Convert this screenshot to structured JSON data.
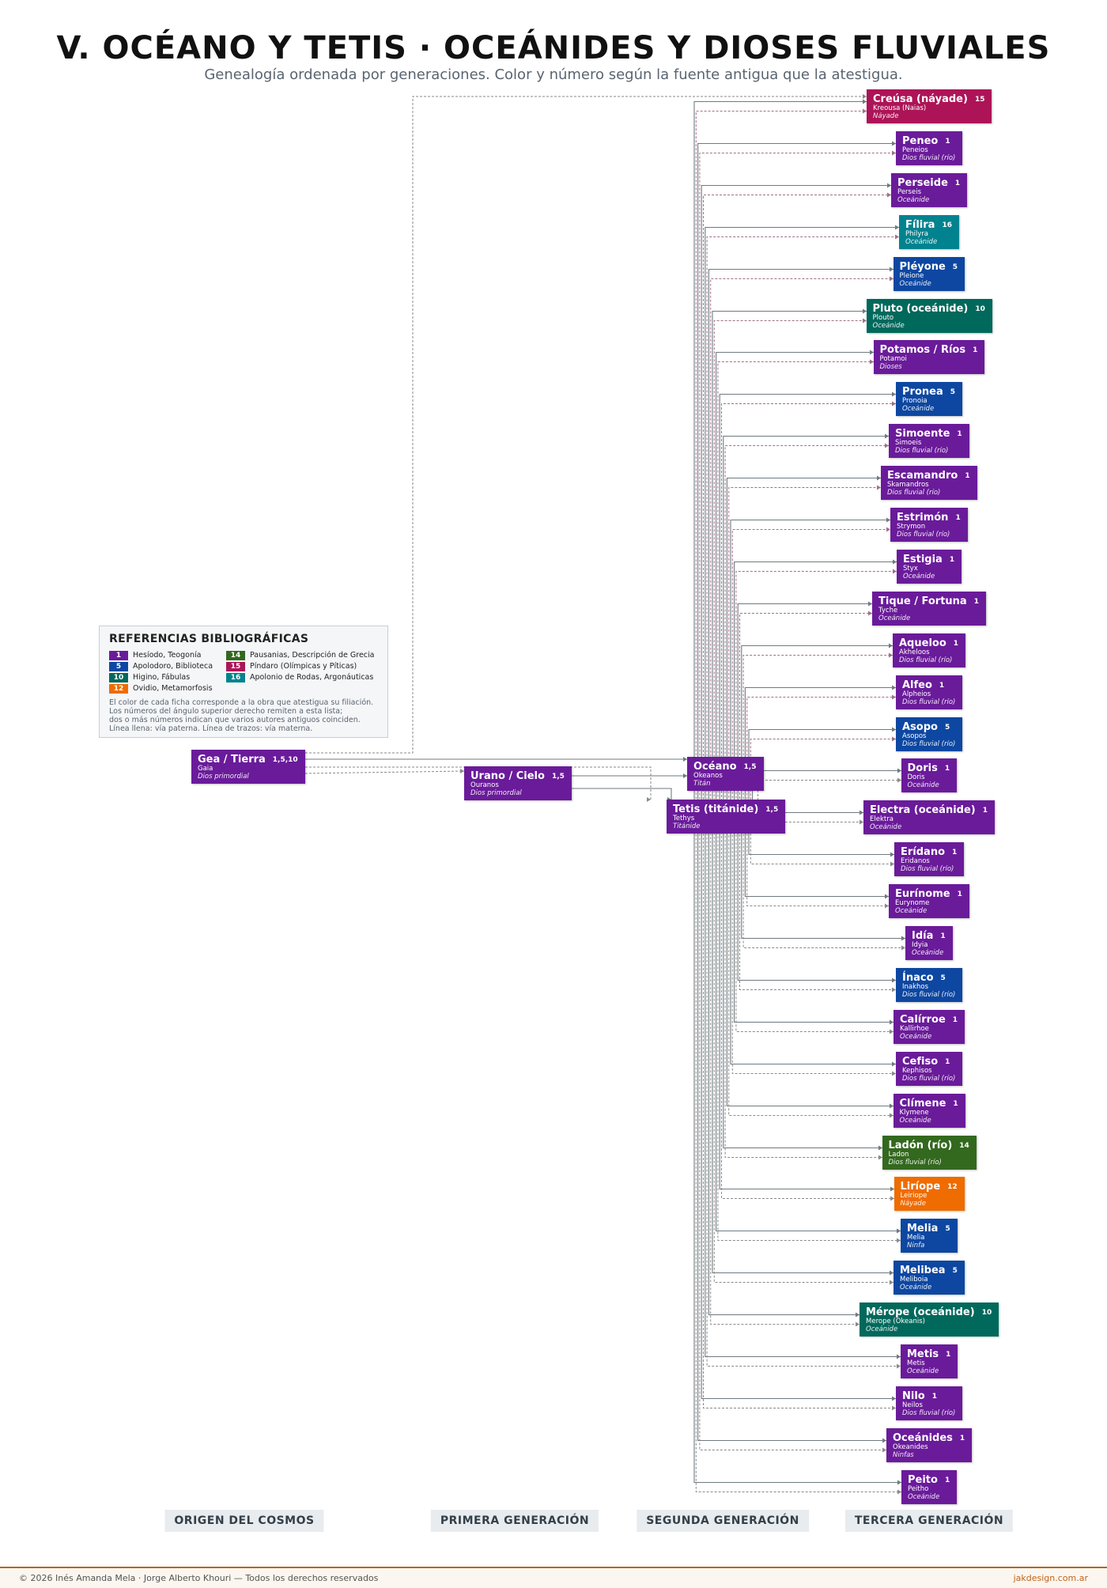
{
  "header": {
    "title": "V. OCÉANO Y TETIS · OCEÁNIDES Y DIOSES FLUVIALES",
    "subtitle": "Genealogía ordenada por generaciones. Color y número según la fuente antigua que la atestigua."
  },
  "legend": {
    "title": "REFERENCIAS BIBLIOGRÁFICAS",
    "items": [
      {
        "num": 1,
        "label": "Hesíodo, Teogonía",
        "color": "#6a1b9a"
      },
      {
        "num": 5,
        "label": "Apolodoro, Biblioteca",
        "color": "#0d47a1"
      },
      {
        "num": 10,
        "label": "Higino, Fábulas",
        "color": "#00695c"
      },
      {
        "num": 12,
        "label": "Ovidio, Metamorfosis",
        "color": "#ef6c00"
      },
      {
        "num": 14,
        "label": "Pausanias, Descripción de Grecia",
        "color": "#33691e"
      },
      {
        "num": 15,
        "label": "Píndaro (Olímpicas y Píticas)",
        "color": "#ad1457"
      },
      {
        "num": 16,
        "label": "Apolonio de Rodas, Argonáuticas",
        "color": "#00838f"
      }
    ],
    "notes": [
      "El color de cada ficha corresponde a la obra que atestigua su filiación.",
      "Los números del ángulo superior derecho remiten a esta lista;",
      "dos o más números indican que varios autores antiguos coinciden.",
      "Línea llena: vía paterna. Línea de trazos: vía materna."
    ]
  },
  "ancestors": [
    {
      "name": "Gea / Tierra",
      "latin": "Gaia",
      "role": "Dios primordial",
      "refs": "1,5,10"
    },
    {
      "name": "Urano / Cielo",
      "latin": "Ouranos",
      "role": "Dios primordial",
      "refs": "1,5"
    },
    {
      "name": "Océano",
      "latin": "Okeanos",
      "role": "Titán",
      "refs": "1,5"
    },
    {
      "name": "Tetis (titánide)",
      "latin": "Tethys",
      "role": "Titánide",
      "refs": "1,5"
    }
  ],
  "children": [
    {
      "name": "Creúsa (náyade)",
      "latin": "Kreousa (Naias)",
      "role": "Náyade",
      "refs": "15"
    },
    {
      "name": "Peneo",
      "latin": "Peneios",
      "role": "Dios fluvial (río)",
      "refs": "1"
    },
    {
      "name": "Perseide",
      "latin": "Perseis",
      "role": "Oceánide",
      "refs": "1"
    },
    {
      "name": "Fílira",
      "latin": "Philyra",
      "role": "Oceánide",
      "refs": "16"
    },
    {
      "name": "Pléyone",
      "latin": "Pleione",
      "role": "Oceánide",
      "refs": "5"
    },
    {
      "name": "Pluto (oceánide)",
      "latin": "Plouto",
      "role": "Oceánide",
      "refs": "10"
    },
    {
      "name": "Potamos / Ríos",
      "latin": "Potamoi",
      "role": "Dioses",
      "refs": "1"
    },
    {
      "name": "Pronea",
      "latin": "Pronoia",
      "role": "Oceánide",
      "refs": "5"
    },
    {
      "name": "Simoente",
      "latin": "Simoeis",
      "role": "Dios fluvial (río)",
      "refs": "1"
    },
    {
      "name": "Escamandro",
      "latin": "Skamandros",
      "role": "Dios fluvial (río)",
      "refs": "1"
    },
    {
      "name": "Estrimón",
      "latin": "Strymon",
      "role": "Dios fluvial (río)",
      "refs": "1"
    },
    {
      "name": "Estigia",
      "latin": "Styx",
      "role": "Oceánide",
      "refs": "1"
    },
    {
      "name": "Tique / Fortuna",
      "latin": "Tyche",
      "role": "Oceánide",
      "refs": "1"
    },
    {
      "name": "Aqueloo",
      "latin": "Akheloos",
      "role": "Dios fluvial (río)",
      "refs": "1"
    },
    {
      "name": "Alfeo",
      "latin": "Alpheios",
      "role": "Dios fluvial (río)",
      "refs": "1"
    },
    {
      "name": "Asopo",
      "latin": "Asopos",
      "role": "Dios fluvial (río)",
      "refs": "5"
    },
    {
      "name": "Doris",
      "latin": "Doris",
      "role": "Oceánide",
      "refs": "1"
    },
    {
      "name": "Electra (oceánide)",
      "latin": "Elektra",
      "role": "Oceánide",
      "refs": "1"
    },
    {
      "name": "Erídano",
      "latin": "Eridanos",
      "role": "Dios fluvial (río)",
      "refs": "1"
    },
    {
      "name": "Eurínome",
      "latin": "Eurynome",
      "role": "Oceánide",
      "refs": "1"
    },
    {
      "name": "Idía",
      "latin": "Idyia",
      "role": "Oceánide",
      "refs": "1"
    },
    {
      "name": "Ínaco",
      "latin": "Inakhos",
      "role": "Dios fluvial (río)",
      "refs": "5"
    },
    {
      "name": "Calírroe",
      "latin": "Kallirhoe",
      "role": "Oceánide",
      "refs": "1"
    },
    {
      "name": "Cefiso",
      "latin": "Kephisos",
      "role": "Dios fluvial (río)",
      "refs": "1"
    },
    {
      "name": "Clímene",
      "latin": "Klymene",
      "role": "Oceánide",
      "refs": "1"
    },
    {
      "name": "Ladón (río)",
      "latin": "Ladon",
      "role": "Dios fluvial (río)",
      "refs": "14"
    },
    {
      "name": "Liríope",
      "latin": "Leiriope",
      "role": "Náyade",
      "refs": "12"
    },
    {
      "name": "Melia",
      "latin": "Melia",
      "role": "Ninfa",
      "refs": "5"
    },
    {
      "name": "Melibea",
      "latin": "Meliboia",
      "role": "Oceánide",
      "refs": "5"
    },
    {
      "name": "Mérope (oceánide)",
      "latin": "Merope (Okeanis)",
      "role": "Oceánide",
      "refs": "10"
    },
    {
      "name": "Metis",
      "latin": "Metis",
      "role": "Oceánide",
      "refs": "1"
    },
    {
      "name": "Nilo",
      "latin": "Neilos",
      "role": "Dios fluvial (río)",
      "refs": "1"
    },
    {
      "name": "Oceánides",
      "latin": "Okeanides",
      "role": "Ninfas",
      "refs": "1"
    },
    {
      "name": "Peito",
      "latin": "Peitho",
      "role": "Oceánide",
      "refs": "1"
    }
  ],
  "columns": [
    "ORIGEN DEL COSMOS",
    "PRIMERA GENERACIÓN",
    "SEGUNDA GENERACIÓN",
    "TERCERA GENERACIÓN"
  ],
  "footer": {
    "credits": "© 2026  Inés Amanda Mela  ·  Jorge Alberto Khouri  —  Todos los derechos reservados",
    "site": "jakdesign.com.ar"
  }
}
